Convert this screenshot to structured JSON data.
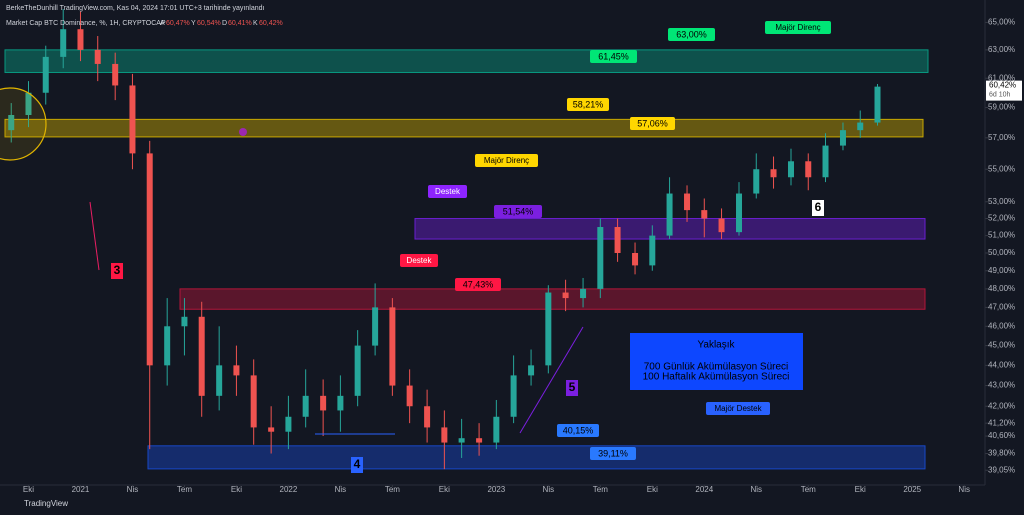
{
  "header": {
    "author": "BerkeTheDunhill TradingView.com, Kas 04, 2024 17:01 UTC+3 tarihinde yayınlandı",
    "symbol": "Market Cap BTC Dominance, %, 1H, CRYPTOCAP",
    "ohlc": [
      [
        "A",
        "60,47%"
      ],
      [
        "Y",
        "60,54%"
      ],
      [
        "D",
        "60,41%"
      ],
      [
        "K",
        "60,42%"
      ]
    ]
  },
  "footer": "TradingView",
  "chart_data": {
    "type": "candlestick",
    "log_scale": true,
    "xlim": [
      2020.613,
      2025.35
    ],
    "ylim": [
      38.4,
      66.3
    ],
    "xticks": [
      {
        "value": 2020.75,
        "label": "Eki"
      },
      {
        "value": 2021,
        "label": "2021"
      },
      {
        "value": 2021.25,
        "label": "Nis"
      },
      {
        "value": 2021.5,
        "label": "Tem"
      },
      {
        "value": 2021.75,
        "label": "Eki"
      },
      {
        "value": 2022,
        "label": "2022"
      },
      {
        "value": 2022.25,
        "label": "Nis"
      },
      {
        "value": 2022.5,
        "label": "Tem"
      },
      {
        "value": 2022.75,
        "label": "Eki"
      },
      {
        "value": 2023,
        "label": "2023"
      },
      {
        "value": 2023.25,
        "label": "Nis"
      },
      {
        "value": 2023.5,
        "label": "Tem"
      },
      {
        "value": 2023.75,
        "label": "Eki"
      },
      {
        "value": 2024,
        "label": "2024"
      },
      {
        "value": 2024.25,
        "label": "Nis"
      },
      {
        "value": 2024.5,
        "label": "Tem"
      },
      {
        "value": 2024.75,
        "label": "Eki"
      },
      {
        "value": 2025,
        "label": "2025"
      },
      {
        "value": 2025.25,
        "label": "Nis"
      }
    ],
    "yticks": [
      {
        "value": 65,
        "label": "65,00%"
      },
      {
        "value": 63,
        "label": "63,00%"
      },
      {
        "value": 61,
        "label": "61,00%"
      },
      {
        "value": 59,
        "label": "59,00%"
      },
      {
        "value": 57,
        "label": "57,00%"
      },
      {
        "value": 55,
        "label": "55,00%"
      },
      {
        "value": 53,
        "label": "53,00%"
      },
      {
        "value": 52,
        "label": "52,00%"
      },
      {
        "value": 51,
        "label": "51,00%"
      },
      {
        "value": 50,
        "label": "50,00%"
      },
      {
        "value": 49,
        "label": "49,00%"
      },
      {
        "value": 48,
        "label": "48,00%"
      },
      {
        "value": 47,
        "label": "47,00%"
      },
      {
        "value": 46,
        "label": "46,00%"
      },
      {
        "value": 45,
        "label": "45,00%"
      },
      {
        "value": 44,
        "label": "44,00%"
      },
      {
        "value": 43,
        "label": "43,00%"
      },
      {
        "value": 42,
        "label": "42,00%"
      },
      {
        "value": 41.2,
        "label": "41,20%"
      },
      {
        "value": 40.6,
        "label": "40,60%"
      },
      {
        "value": 39.8,
        "label": "39,80%"
      },
      {
        "value": 39.05,
        "label": "39,05%"
      }
    ],
    "last_price": {
      "value": 60.42,
      "label": "60,42%",
      "countdown": "6d 10h"
    },
    "up_color": "#26a69a",
    "down_color": "#ef5350",
    "x": [
      2020.667,
      2020.75,
      2020.833,
      2020.917,
      2021,
      2021.083,
      2021.167,
      2021.25,
      2021.333,
      2021.417,
      2021.5,
      2021.583,
      2021.667,
      2021.75,
      2021.833,
      2021.917,
      2022,
      2022.083,
      2022.167,
      2022.25,
      2022.333,
      2022.417,
      2022.5,
      2022.583,
      2022.667,
      2022.75,
      2022.833,
      2022.917,
      2023,
      2023.083,
      2023.167,
      2023.25,
      2023.333,
      2023.417,
      2023.5,
      2023.583,
      2023.667,
      2023.75,
      2023.833,
      2023.917,
      2024,
      2024.083,
      2024.167,
      2024.25,
      2024.333,
      2024.417,
      2024.5,
      2024.583,
      2024.667,
      2024.75,
      2024.833
    ],
    "ohlc": [
      [
        57.5,
        59.3,
        56.7,
        58.5
      ],
      [
        58.5,
        60.8,
        57.7,
        60
      ],
      [
        60,
        63.3,
        59.2,
        62.5
      ],
      [
        62.5,
        66,
        61.7,
        64.5
      ],
      [
        64.5,
        65.8,
        62.2,
        63
      ],
      [
        63,
        64,
        60.8,
        62
      ],
      [
        62,
        62.8,
        59.5,
        60.5
      ],
      [
        60.5,
        61.3,
        55,
        56
      ],
      [
        56,
        56.8,
        40,
        44
      ],
      [
        44,
        47.5,
        43,
        46
      ],
      [
        46,
        47.5,
        44.5,
        46.5
      ],
      [
        46.5,
        47.3,
        41.5,
        42.5
      ],
      [
        42.5,
        46,
        41.8,
        44
      ],
      [
        44,
        45,
        42.5,
        43.5
      ],
      [
        43.5,
        44.3,
        40.2,
        41
      ],
      [
        41,
        42,
        39.8,
        40.8
      ],
      [
        40.8,
        42.5,
        40,
        41.5
      ],
      [
        41.5,
        43.8,
        41,
        42.5
      ],
      [
        42.5,
        43.3,
        40.6,
        41.8
      ],
      [
        41.8,
        43.5,
        40.8,
        42.5
      ],
      [
        42.5,
        45.8,
        42,
        45
      ],
      [
        45,
        48.3,
        44.5,
        47
      ],
      [
        47,
        47.5,
        42.5,
        43
      ],
      [
        43,
        43.8,
        41.2,
        42
      ],
      [
        42,
        42.8,
        40.3,
        41
      ],
      [
        41,
        41.8,
        39.1,
        40.3
      ],
      [
        40.3,
        41.4,
        39.6,
        40.5
      ],
      [
        40.5,
        41.2,
        39.7,
        40.3
      ],
      [
        40.3,
        42.3,
        40,
        41.5
      ],
      [
        41.5,
        44.5,
        41.2,
        43.5
      ],
      [
        43.5,
        44.8,
        43,
        44
      ],
      [
        44,
        48.2,
        43.6,
        47.8
      ],
      [
        47.8,
        48.5,
        46.8,
        47.5
      ],
      [
        47.5,
        48.6,
        47,
        48
      ],
      [
        48,
        52,
        47.5,
        51.5
      ],
      [
        51.5,
        52,
        49.5,
        50
      ],
      [
        50,
        50.6,
        48.8,
        49.3
      ],
      [
        49.3,
        51.6,
        49,
        51
      ],
      [
        51,
        54.5,
        50.8,
        53.5
      ],
      [
        53.5,
        54,
        51.8,
        52.5
      ],
      [
        52.5,
        53.2,
        50.9,
        52
      ],
      [
        52,
        52.6,
        50.8,
        51.2
      ],
      [
        51.2,
        54.2,
        51,
        53.5
      ],
      [
        53.5,
        56,
        53.2,
        55
      ],
      [
        55,
        55.8,
        53.8,
        54.5
      ],
      [
        54.5,
        56.3,
        54,
        55.5
      ],
      [
        55.5,
        56,
        53.7,
        54.5
      ],
      [
        54.5,
        57.3,
        54.2,
        56.5
      ],
      [
        56.5,
        58,
        56.2,
        57.5
      ],
      [
        57.5,
        58.8,
        57,
        58
      ],
      [
        58,
        60.6,
        57.8,
        60.42
      ]
    ],
    "zones": [
      {
        "top": 63,
        "bottom": 61.4,
        "color": "#089981"
      },
      {
        "top": 58.21,
        "bottom": 57.06,
        "color": "#c9a800"
      },
      {
        "top": 52,
        "bottom": 50.8,
        "color": "#6a1fd1"
      },
      {
        "top": 48,
        "bottom": 46.9,
        "color": "#b2163a"
      },
      {
        "top": 40.15,
        "bottom": 39.11,
        "color": "#1848c8"
      }
    ],
    "annotations": {
      "g1": "61,45%",
      "g2": "63,00%",
      "g3": "Majör Direnç",
      "y1": "58,21%",
      "y2": "57,06%",
      "y3": "Majör Direnç",
      "p1": "Destek",
      "p2": "51,54%",
      "r1": "Destek",
      "r2": "47,43%",
      "b1": "40,15%",
      "b2": "39,11%",
      "b3": "Majör Destek",
      "info": [
        "Yaklaşık",
        "700 Günlük Akümülasyon Süreci",
        "100 Haftalık Akümülasyon Süreci"
      ],
      "n3": "3",
      "n4": "4",
      "n5": "5",
      "n6": "6"
    }
  }
}
